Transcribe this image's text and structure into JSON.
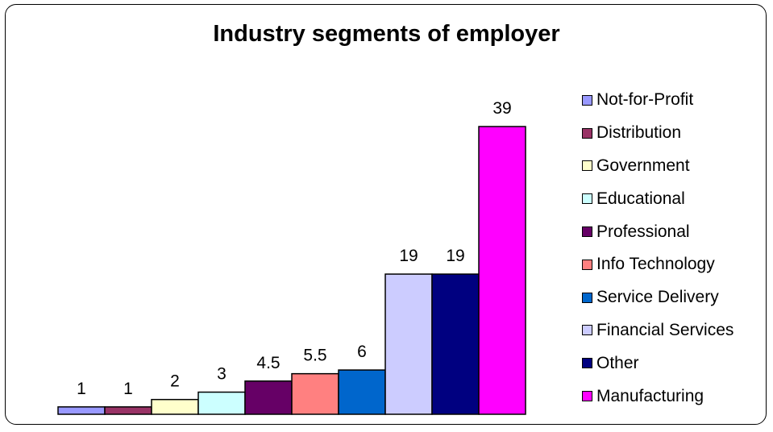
{
  "chart_data": {
    "type": "bar",
    "title": "Industry segments of employer",
    "xlabel": "",
    "ylabel": "",
    "ylim": [
      0,
      39
    ],
    "grid": false,
    "legend_position": "right",
    "categories": [
      "Not-for-Profit",
      "Distribution",
      "Government",
      "Educational",
      "Professional",
      "Info Technology",
      "Service Delivery",
      "Financial Services",
      "Other",
      "Manufacturing"
    ],
    "values": [
      1,
      1,
      2,
      3,
      4.5,
      5.5,
      6,
      19,
      19,
      39
    ],
    "data_labels": [
      "1",
      "1",
      "2",
      "3",
      "4.5",
      "5.5",
      "6",
      "19",
      "19",
      "39"
    ],
    "colors": [
      "#9999FF",
      "#993366",
      "#FFFFCC",
      "#CCFFFF",
      "#660066",
      "#FF8080",
      "#0066CC",
      "#CCCCFF",
      "#000080",
      "#FF00FF"
    ]
  }
}
